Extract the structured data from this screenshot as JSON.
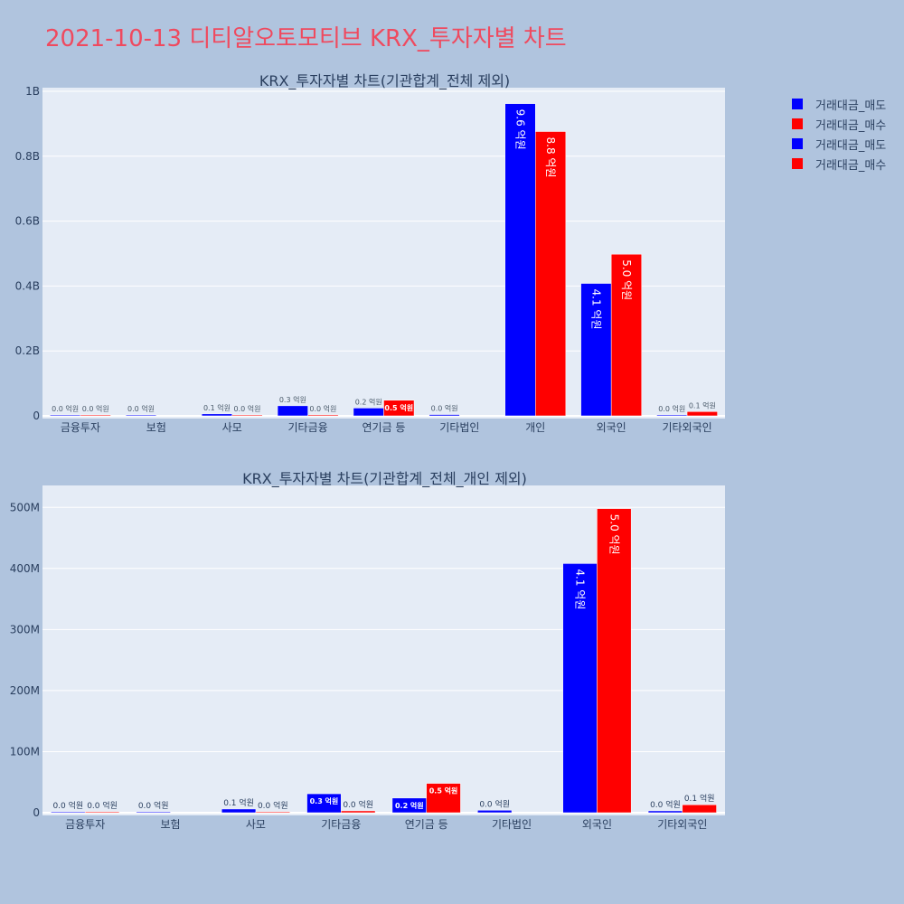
{
  "title": "2021-10-13 디티알오토모티브 KRX_투자자별 차트",
  "legend": [
    {
      "name": "거래대금_매도",
      "color": "#0000ff"
    },
    {
      "name": "거래대금_매수",
      "color": "#ff0000"
    },
    {
      "name": "거래대금_매도",
      "color": "#0000ff"
    },
    {
      "name": "거래대금_매수",
      "color": "#ff0000"
    }
  ],
  "colors": {
    "sell": "#0000ff",
    "buy": "#ff0000",
    "plot_bg": "#e5ecf6",
    "page_bg": "#b0c4de"
  },
  "chart_data": [
    {
      "type": "bar",
      "title": "KRX_투자자별 차트(기관합계_전체 제외)",
      "categories": [
        "금융투자",
        "보험",
        "사모",
        "기타금융",
        "연기금 등",
        "기타법인",
        "개인",
        "외국인",
        "기타외국인"
      ],
      "series": [
        {
          "name": "거래대금_매도",
          "values": [
            0,
            1000000,
            6000000,
            31000000,
            24000000,
            4000000,
            962000000,
            408000000,
            3000000
          ],
          "labels": [
            "0.0 억원",
            "0.0 억원",
            "0.1 억원",
            "0.3 억원",
            "0.2 억원",
            "0.0 억원",
            "9.6 억원",
            "4.1 억원",
            "0.0 억원"
          ]
        },
        {
          "name": "거래대금_매수",
          "values": [
            0,
            null,
            1000000,
            3000000,
            48000000,
            null,
            876000000,
            498000000,
            13000000
          ],
          "labels": [
            "0.0 억원",
            "",
            "0.0 억원",
            "0.0 억원",
            "0.5 억원",
            "",
            "8.8 억원",
            "5.0 억원",
            "0.1 억원"
          ]
        }
      ],
      "ylim": [
        0,
        1000000000
      ],
      "yticks": [
        0,
        200000000,
        400000000,
        600000000,
        800000000,
        1000000000
      ],
      "ytick_labels": [
        "0",
        "0.2B",
        "0.4B",
        "0.6B",
        "0.8B",
        "1B"
      ],
      "grid": true
    },
    {
      "type": "bar",
      "title": "KRX_투자자별 차트(기관합계_전체_개인 제외)",
      "categories": [
        "금융투자",
        "보험",
        "사모",
        "기타금융",
        "연기금 등",
        "기타법인",
        "외국인",
        "기타외국인"
      ],
      "series": [
        {
          "name": "거래대금_매도",
          "values": [
            0,
            1000000,
            6000000,
            31000000,
            24000000,
            4000000,
            408000000,
            3000000
          ],
          "labels": [
            "0.0 억원",
            "0.0 억원",
            "0.1 억원",
            "0.3 억원",
            "0.2 억원",
            "0.0 억원",
            "4.1 억원",
            "0.0 억원"
          ]
        },
        {
          "name": "거래대금_매수",
          "values": [
            0,
            null,
            1000000,
            3000000,
            48000000,
            null,
            498000000,
            13000000
          ],
          "labels": [
            "0.0 억원",
            "",
            "0.0 억원",
            "0.0 억원",
            "0.5 억원",
            "",
            "5.0 억원",
            "0.1 억원"
          ]
        }
      ],
      "ylim": [
        0,
        530000000
      ],
      "yticks": [
        0,
        100000000,
        200000000,
        300000000,
        400000000,
        500000000
      ],
      "ytick_labels": [
        "0",
        "100M",
        "200M",
        "300M",
        "400M",
        "500M"
      ],
      "grid": true
    }
  ]
}
